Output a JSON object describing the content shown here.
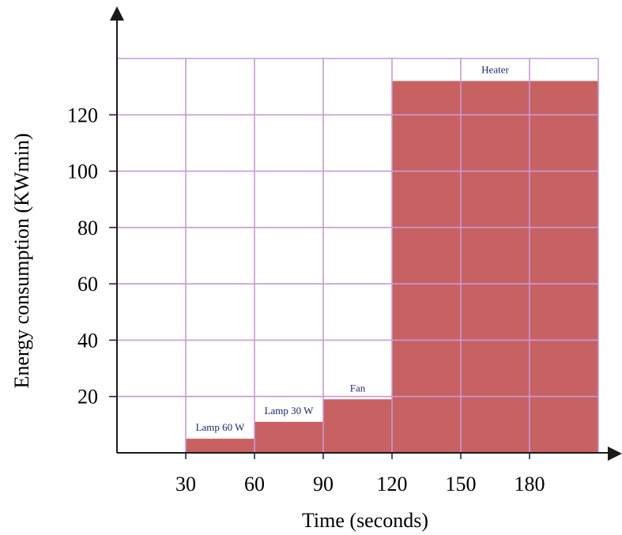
{
  "chart_data": {
    "type": "bar",
    "xlabel": "Time (seconds)",
    "ylabel": "Energy consumption (KWmin)",
    "xlim": [
      0,
      210
    ],
    "ylim": [
      0,
      140
    ],
    "x_ticks": [
      30,
      60,
      90,
      120,
      150,
      180
    ],
    "x_tick_labels": [
      "30",
      "60",
      "90",
      "120",
      "150",
      "180"
    ],
    "y_ticks": [
      20,
      40,
      60,
      80,
      100,
      120
    ],
    "y_tick_labels": [
      "20",
      "40",
      "60",
      "80",
      "100",
      "120"
    ],
    "grid": true,
    "bars": [
      {
        "label": "Lamp 60 W",
        "x_start": 30,
        "x_end": 60,
        "value": 5
      },
      {
        "label": "Lamp 30 W",
        "x_start": 60,
        "x_end": 90,
        "value": 11
      },
      {
        "label": "Fan",
        "x_start": 90,
        "x_end": 120,
        "value": 19
      },
      {
        "label": "Heater",
        "x_start": 120,
        "x_end": 210,
        "value": 132
      }
    ],
    "colors": {
      "bar": "#c25050",
      "grid": "#c79ad6",
      "axis": "#1a1a1a",
      "label": "#1a2a6c"
    }
  }
}
